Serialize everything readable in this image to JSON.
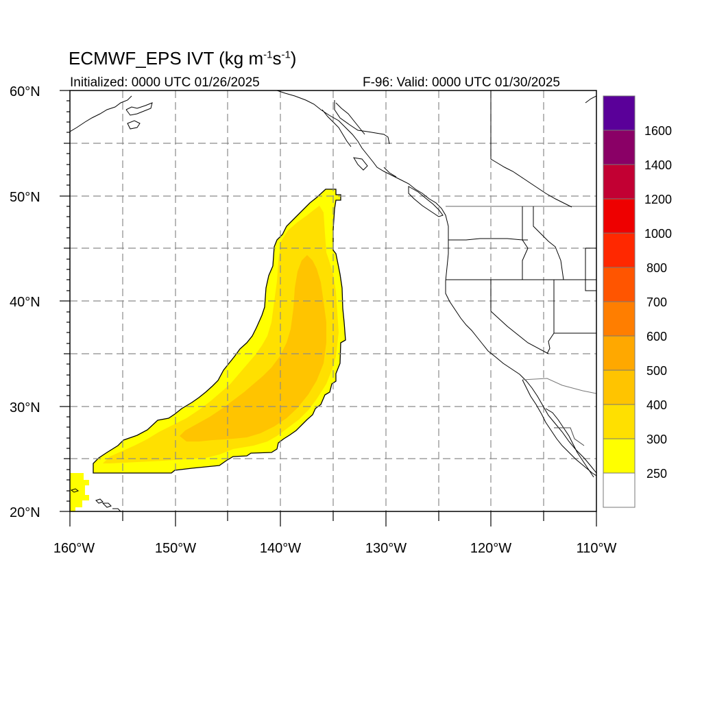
{
  "title": {
    "model": "ECMWF_EPS IVT (kg m",
    "exp1": "-1",
    "mid": "s",
    "exp2": "-1",
    "end": ")"
  },
  "subtitle": {
    "initialized": "Initialized: 0000 UTC 01/26/2025",
    "valid": "F-96: Valid: 0000 UTC 01/30/2025"
  },
  "axes": {
    "lat_labels": [
      "60°N",
      "50°N",
      "40°N",
      "30°N",
      "20°N"
    ],
    "lon_labels": [
      "160°W",
      "150°W",
      "140°W",
      "130°W",
      "120°W",
      "110°W"
    ],
    "lat_range": [
      20,
      60
    ],
    "lon_range": [
      -160,
      -110
    ],
    "grid": "dashed, every 5 degrees"
  },
  "colorbar": {
    "labels": [
      "1600",
      "1400",
      "1200",
      "1000",
      "800",
      "700",
      "600",
      "500",
      "400",
      "300",
      "250"
    ],
    "colors": [
      "#5a0099",
      "#8a0066",
      "#c20033",
      "#ee0000",
      "#ff2800",
      "#ff5500",
      "#ff7e00",
      "#ffa800",
      "#ffc400",
      "#ffe000",
      "#ffff00",
      "#ffffff"
    ]
  }
}
